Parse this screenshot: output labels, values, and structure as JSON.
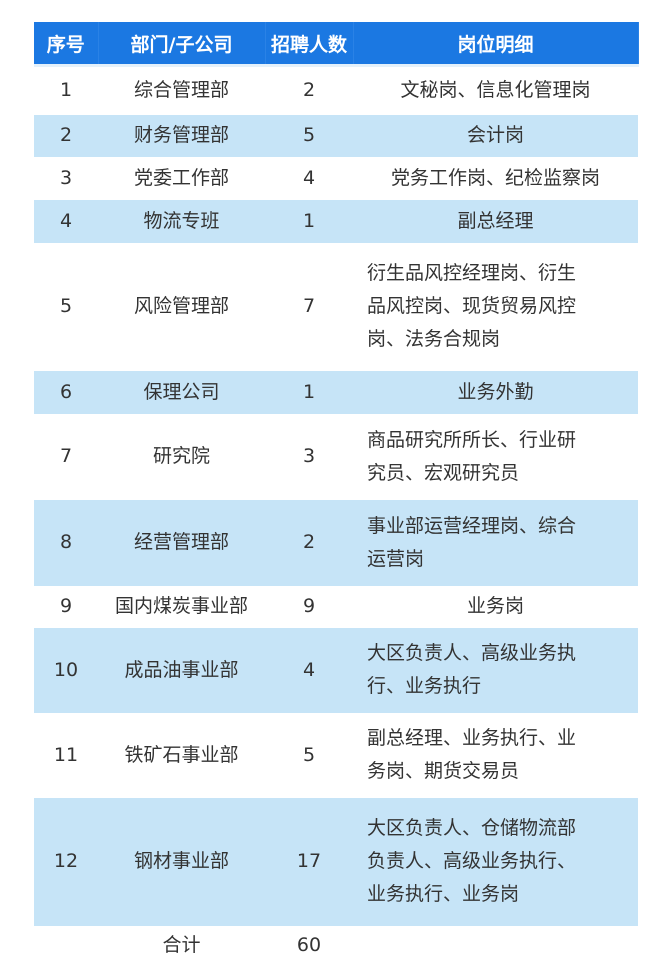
{
  "headers": [
    "序号",
    "部门/子公司",
    "招聘人数",
    "岗位明细"
  ],
  "rows": [
    {
      "no": "1",
      "dept": "综合管理部",
      "count": "2",
      "desc": [
        "文秘岗、信息化管理岗"
      ]
    },
    {
      "no": "2",
      "dept": "财务管理部",
      "count": "5",
      "desc": [
        "会计岗"
      ]
    },
    {
      "no": "3",
      "dept": "党委工作部",
      "count": "4",
      "desc": [
        "党务工作岗、纪检监察岗"
      ]
    },
    {
      "no": "4",
      "dept": "物流专班",
      "count": "1",
      "desc": [
        "副总经理"
      ]
    },
    {
      "no": "5",
      "dept": "风险管理部",
      "count": "7",
      "desc": [
        "衍生品风控经理岗、衍生",
        "品风控岗、现货贸易风控",
        "岗、法务合规岗"
      ]
    },
    {
      "no": "6",
      "dept": "保理公司",
      "count": "1",
      "desc": [
        "业务外勤"
      ]
    },
    {
      "no": "7",
      "dept": "研究院",
      "count": "3",
      "desc": [
        "商品研究所所长、行业研",
        "究员、宏观研究员"
      ]
    },
    {
      "no": "8",
      "dept": "经营管理部",
      "count": "2",
      "desc": [
        "事业部运营经理岗、综合",
        "运营岗"
      ]
    },
    {
      "no": "9",
      "dept": "国内煤炭事业部",
      "count": "9",
      "desc": [
        "业务岗"
      ]
    },
    {
      "no": "10",
      "dept": "成品油事业部",
      "count": "4",
      "desc": [
        "大区负责人、高级业务执",
        "行、业务执行"
      ]
    },
    {
      "no": "11",
      "dept": "铁矿石事业部",
      "count": "5",
      "desc": [
        "副总经理、业务执行、业",
        "务岗、期货交易员"
      ]
    },
    {
      "no": "12",
      "dept": "钢材事业部",
      "count": "17",
      "desc": [
        "大区负责人、仓储物流部",
        "负责人、高级业务执行、",
        "业务执行、业务岗"
      ]
    }
  ],
  "total": {
    "label": "合计",
    "count": "60"
  },
  "colors": {
    "header": "#1b78e2",
    "stripe": "#c6e4f7"
  }
}
